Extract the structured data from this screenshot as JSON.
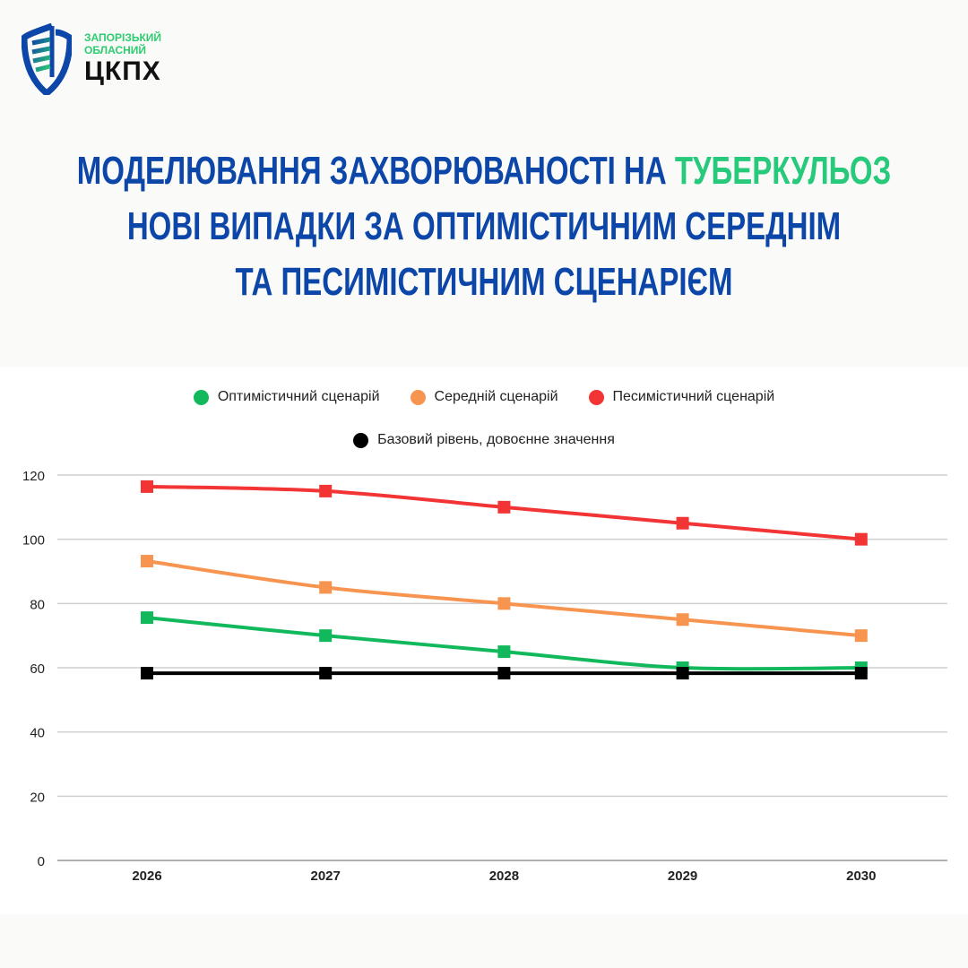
{
  "logo": {
    "line1": "ЗАПОРІЗЬКИЙ",
    "line2": "ОБЛАСНИЙ",
    "line3": "ЦКПХ"
  },
  "title": {
    "line1_a": "МОДЕЛЮВАННЯ ЗАХВОРЮВАНОСТІ НА ",
    "line1_b": "ТУБЕРКУЛЬОЗ",
    "line2": "НОВІ ВИПАДКИ ЗА ОПТИМІСТИЧНИМ СЕРЕДНІМ",
    "line3": "ТА ПЕСИМІСТИЧНИМ СЦЕНАРІЄМ"
  },
  "chart_data": {
    "type": "line",
    "categories": [
      "2026",
      "2027",
      "2028",
      "2029",
      "2030"
    ],
    "series": [
      {
        "name": "Оптимістичний сценарій",
        "color": "#12b85c",
        "values": [
          75.6,
          70,
          65,
          60,
          60
        ]
      },
      {
        "name": "Середній сценарій",
        "color": "#f79550",
        "values": [
          93.2,
          85,
          80,
          75,
          70
        ]
      },
      {
        "name": "Песимістичний сценарій",
        "color": "#f23434",
        "values": [
          116.4,
          115,
          110,
          105,
          100
        ]
      },
      {
        "name": "Базовий рівень, довоєнне значення",
        "color": "#000000",
        "values": [
          58.3,
          58.3,
          58.3,
          58.3,
          58.3
        ]
      }
    ],
    "yticks": [
      "0",
      "20",
      "40",
      "60",
      "80",
      "100",
      "120"
    ],
    "ylim": [
      0,
      120
    ],
    "grid": true,
    "legend_position": "top-center"
  }
}
